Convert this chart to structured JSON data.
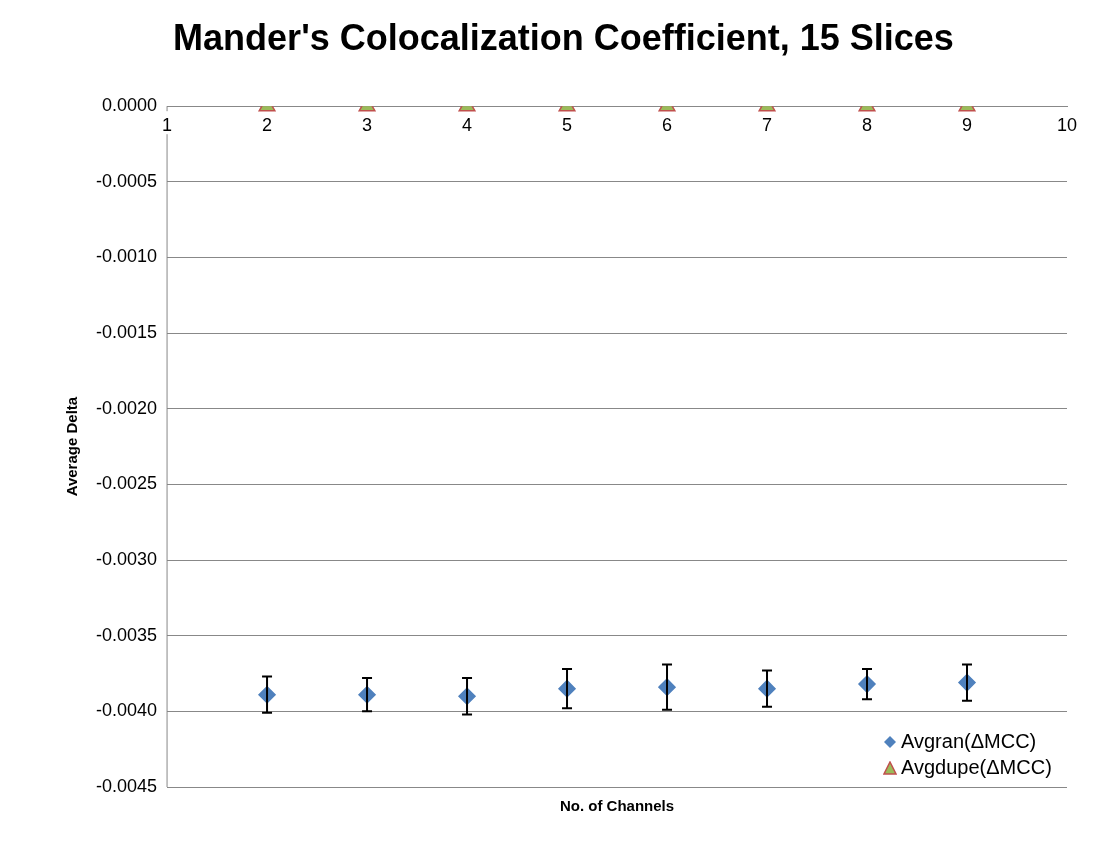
{
  "chart_data": {
    "type": "scatter",
    "title": "Mander's Colocalization Coefficient, 15 Slices",
    "xlabel": "No. of Channels",
    "ylabel": "Average Delta",
    "x": [
      2,
      3,
      4,
      5,
      6,
      7,
      8,
      9
    ],
    "series": [
      {
        "name": "Avgran(ΔMCC)",
        "color": "#4f81bd",
        "marker": "diamond",
        "values": [
          -0.00389,
          -0.00389,
          -0.0039,
          -0.00385,
          -0.00384,
          -0.00385,
          -0.00382,
          -0.00381
        ],
        "errors": [
          0.00012,
          0.00011,
          0.00012,
          0.00013,
          0.00015,
          0.00012,
          0.0001,
          0.00012
        ]
      },
      {
        "name": "Avgdupe(ΔMCC)",
        "color": "#9bbb59",
        "marker": "triangle",
        "values": [
          0,
          0,
          0,
          0,
          0,
          0,
          0,
          0
        ]
      }
    ],
    "xlim": [
      1,
      10
    ],
    "xticks": [
      1,
      2,
      3,
      4,
      5,
      6,
      7,
      8,
      9,
      10
    ],
    "ylim": [
      -0.0045,
      0
    ],
    "yticks": [
      {
        "value": 0,
        "label": "0.0000"
      },
      {
        "value": -0.0005,
        "label": "-0.0005"
      },
      {
        "value": -0.001,
        "label": "-0.0010"
      },
      {
        "value": -0.0015,
        "label": "-0.0015"
      },
      {
        "value": -0.002,
        "label": "-0.0020"
      },
      {
        "value": -0.0025,
        "label": "-0.0025"
      },
      {
        "value": -0.003,
        "label": "-0.0030"
      },
      {
        "value": -0.0035,
        "label": "-0.0035"
      },
      {
        "value": -0.004,
        "label": "-0.0040"
      },
      {
        "value": -0.0045,
        "label": "-0.0045"
      }
    ],
    "grid": "y",
    "legend": "bottom right"
  }
}
